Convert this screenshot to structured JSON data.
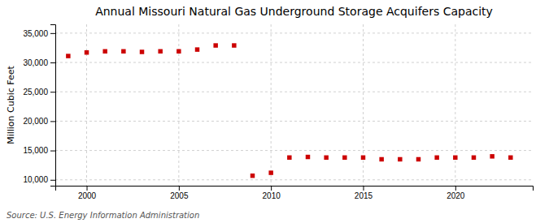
{
  "chart_data": {
    "type": "scatter",
    "title": "Annual Missouri Natural Gas Underground Storage Acquifers Capacity",
    "ylabel": "Million Cubic Feet",
    "source": "Source: U.S. Energy Information Administration",
    "color": "#cc0000",
    "marker": "square",
    "grid": true,
    "x": [
      1999,
      2000,
      2001,
      2002,
      2003,
      2004,
      2005,
      2006,
      2007,
      2008,
      2009,
      2010,
      2011,
      2012,
      2013,
      2014,
      2015,
      2016,
      2017,
      2018,
      2019,
      2020,
      2021,
      2022,
      2023
    ],
    "values": [
      31100,
      31700,
      31900,
      31900,
      31800,
      31900,
      31900,
      32200,
      32900,
      32900,
      10700,
      11200,
      13800,
      13900,
      13800,
      13800,
      13800,
      13500,
      13500,
      13500,
      13800,
      13800,
      13800,
      14000,
      13800
    ],
    "xlim": [
      1998.3,
      2024.2
    ],
    "xticks": [
      2000,
      2005,
      2010,
      2015,
      2020
    ],
    "ylim": [
      9000,
      36500
    ],
    "yticks": [
      {
        "value": 10000,
        "label": "10,000"
      },
      {
        "value": 15000,
        "label": "15,000"
      },
      {
        "value": 20000,
        "label": "20,000"
      },
      {
        "value": 25000,
        "label": "25,000"
      },
      {
        "value": 30000,
        "label": "30,000"
      },
      {
        "value": 35000,
        "label": "35,000"
      }
    ]
  }
}
